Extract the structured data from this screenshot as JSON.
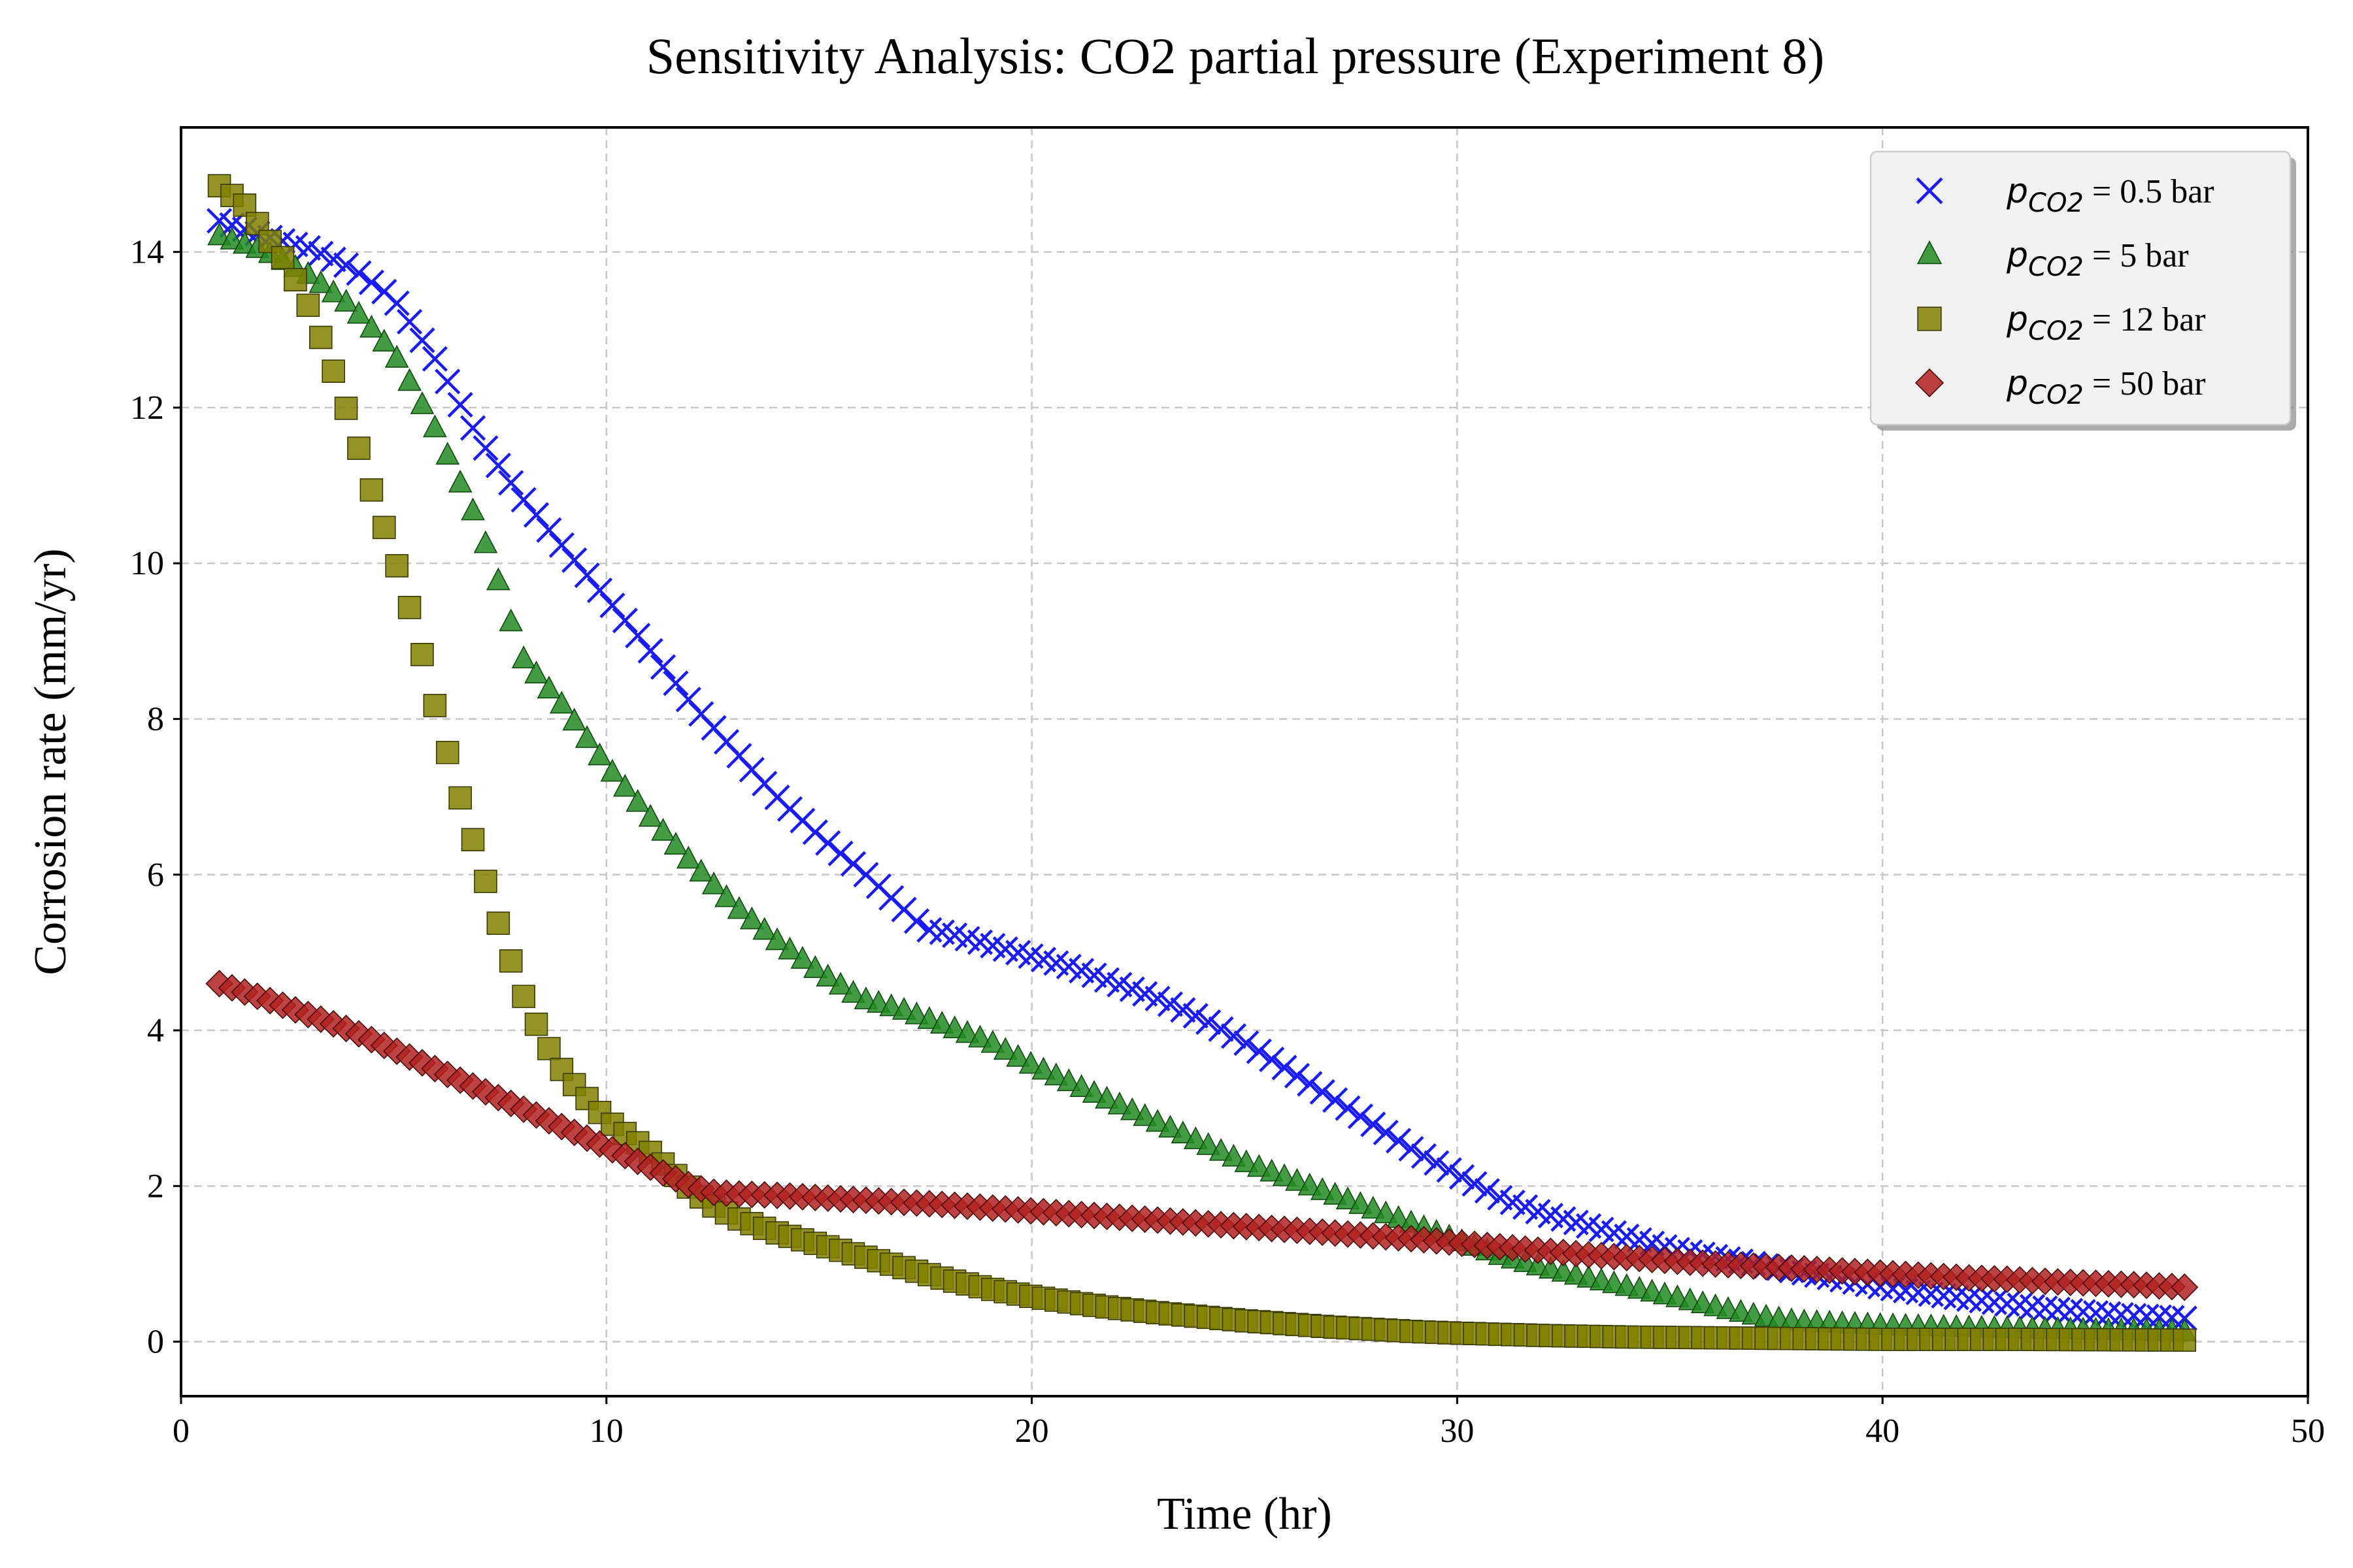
{
  "chart_data": {
    "type": "scatter",
    "title": "Sensitivity Analysis: CO2 partial pressure (Experiment 8)",
    "xlabel": "Time (hr)",
    "ylabel": "Corrosion rate (mm/yr)",
    "xlim": [
      0,
      50
    ],
    "ylim": [
      -0.7,
      15.6
    ],
    "xticks": [
      0,
      10,
      20,
      30,
      40,
      50
    ],
    "yticks": [
      0,
      2,
      4,
      6,
      8,
      10,
      12,
      14
    ],
    "grid": true,
    "legend_position": "top-right",
    "legend": [
      {
        "symbol": "p",
        "subscript": "CO2",
        "text": " = 0.5 bar",
        "series_index": 0
      },
      {
        "symbol": "p",
        "subscript": "CO2",
        "text": " = 5 bar",
        "series_index": 1
      },
      {
        "symbol": "p",
        "subscript": "CO2",
        "text": " = 12 bar",
        "series_index": 2
      },
      {
        "symbol": "p",
        "subscript": "CO2",
        "text": " = 50 bar",
        "series_index": 3
      }
    ],
    "x_sampling": {
      "start": 0.9,
      "end": 47.1,
      "count": 156
    },
    "series": [
      {
        "name": "pCO2 = 0.5 bar",
        "marker": "x",
        "color": "#1a1aff",
        "edge_color": "#1a1aff",
        "points": [
          [
            0.9,
            14.4
          ],
          [
            2,
            14.2
          ],
          [
            3,
            14.05
          ],
          [
            4,
            13.8
          ],
          [
            5,
            13.4
          ],
          [
            6,
            12.6
          ],
          [
            7,
            11.6
          ],
          [
            8,
            10.85
          ],
          [
            9,
            10.2
          ],
          [
            10,
            9.55
          ],
          [
            11,
            8.9
          ],
          [
            12,
            8.2
          ],
          [
            13,
            7.6
          ],
          [
            14,
            7.0
          ],
          [
            15,
            6.5
          ],
          [
            16,
            6.05
          ],
          [
            17,
            5.55
          ],
          [
            17.5,
            5.3
          ],
          [
            18,
            5.25
          ],
          [
            19,
            5.1
          ],
          [
            20,
            4.95
          ],
          [
            21,
            4.8
          ],
          [
            22,
            4.6
          ],
          [
            23,
            4.4
          ],
          [
            24,
            4.15
          ],
          [
            25,
            3.85
          ],
          [
            26,
            3.5
          ],
          [
            27,
            3.15
          ],
          [
            28,
            2.8
          ],
          [
            29,
            2.45
          ],
          [
            30,
            2.15
          ],
          [
            31,
            1.85
          ],
          [
            32,
            1.65
          ],
          [
            33,
            1.5
          ],
          [
            34,
            1.35
          ],
          [
            35,
            1.2
          ],
          [
            36,
            1.1
          ],
          [
            37,
            1.0
          ],
          [
            38,
            0.9
          ],
          [
            39,
            0.8
          ],
          [
            40,
            0.7
          ],
          [
            41,
            0.62
          ],
          [
            42,
            0.55
          ],
          [
            43,
            0.48
          ],
          [
            44,
            0.42
          ],
          [
            45,
            0.37
          ],
          [
            46,
            0.33
          ],
          [
            47.1,
            0.3
          ]
        ]
      },
      {
        "name": "pCO2 = 5 bar",
        "marker": "triangle",
        "color": "#228b22",
        "edge_color": "#0f4a0f",
        "points": [
          [
            0.9,
            14.2
          ],
          [
            2,
            14.0
          ],
          [
            3,
            13.7
          ],
          [
            4,
            13.3
          ],
          [
            5,
            12.7
          ],
          [
            6,
            11.7
          ],
          [
            7,
            10.5
          ],
          [
            7.5,
            9.7
          ],
          [
            8,
            8.8
          ],
          [
            9,
            8.15
          ],
          [
            10,
            7.4
          ],
          [
            11,
            6.75
          ],
          [
            12,
            6.15
          ],
          [
            13,
            5.6
          ],
          [
            14,
            5.15
          ],
          [
            15,
            4.75
          ],
          [
            16,
            4.4
          ],
          [
            17,
            4.25
          ],
          [
            18,
            4.05
          ],
          [
            19,
            3.85
          ],
          [
            20,
            3.55
          ],
          [
            21,
            3.3
          ],
          [
            22,
            3.05
          ],
          [
            23,
            2.8
          ],
          [
            24,
            2.55
          ],
          [
            25,
            2.3
          ],
          [
            26,
            2.1
          ],
          [
            27,
            1.9
          ],
          [
            28,
            1.7
          ],
          [
            29,
            1.5
          ],
          [
            30,
            1.3
          ],
          [
            31,
            1.1
          ],
          [
            32,
            0.95
          ],
          [
            33,
            0.82
          ],
          [
            34,
            0.7
          ],
          [
            35,
            0.58
          ],
          [
            36,
            0.45
          ],
          [
            37,
            0.33
          ],
          [
            38,
            0.25
          ],
          [
            40,
            0.2
          ],
          [
            42,
            0.17
          ],
          [
            44,
            0.15
          ],
          [
            47.1,
            0.12
          ]
        ]
      },
      {
        "name": "pCO2 = 12 bar",
        "marker": "square",
        "color": "#808000",
        "edge_color": "#3a3a00",
        "points": [
          [
            0.9,
            14.85
          ],
          [
            1.5,
            14.6
          ],
          [
            2,
            14.2
          ],
          [
            2.5,
            13.85
          ],
          [
            3,
            13.3
          ],
          [
            3.5,
            12.6
          ],
          [
            4,
            11.8
          ],
          [
            4.5,
            10.9
          ],
          [
            5,
            10.1
          ],
          [
            5.5,
            9.2
          ],
          [
            6,
            8.1
          ],
          [
            6.5,
            7.1
          ],
          [
            7,
            6.2
          ],
          [
            7.5,
            5.3
          ],
          [
            8,
            4.5
          ],
          [
            8.5,
            3.9
          ],
          [
            9,
            3.45
          ],
          [
            9.5,
            3.15
          ],
          [
            10,
            2.85
          ],
          [
            10.5,
            2.65
          ],
          [
            11,
            2.45
          ],
          [
            11.5,
            2.2
          ],
          [
            12,
            1.95
          ],
          [
            12.5,
            1.75
          ],
          [
            13,
            1.6
          ],
          [
            14,
            1.4
          ],
          [
            15,
            1.25
          ],
          [
            16,
            1.1
          ],
          [
            17,
            0.95
          ],
          [
            18,
            0.8
          ],
          [
            19,
            0.68
          ],
          [
            20,
            0.58
          ],
          [
            21,
            0.5
          ],
          [
            22,
            0.43
          ],
          [
            23,
            0.37
          ],
          [
            24,
            0.32
          ],
          [
            25,
            0.27
          ],
          [
            26,
            0.23
          ],
          [
            27,
            0.19
          ],
          [
            28,
            0.16
          ],
          [
            29,
            0.13
          ],
          [
            30,
            0.11
          ],
          [
            32,
            0.08
          ],
          [
            34,
            0.06
          ],
          [
            36,
            0.05
          ],
          [
            38,
            0.04
          ],
          [
            40,
            0.03
          ],
          [
            43,
            0.03
          ],
          [
            47.1,
            0.02
          ]
        ]
      },
      {
        "name": "pCO2 = 50 bar",
        "marker": "diamond",
        "color": "#b22222",
        "edge_color": "#4a0a0a",
        "points": [
          [
            0.9,
            4.6
          ],
          [
            2,
            4.4
          ],
          [
            3,
            4.2
          ],
          [
            4,
            4.0
          ],
          [
            5,
            3.75
          ],
          [
            6,
            3.5
          ],
          [
            7,
            3.25
          ],
          [
            8,
            3.0
          ],
          [
            9,
            2.75
          ],
          [
            10,
            2.5
          ],
          [
            11,
            2.25
          ],
          [
            12,
            2.0
          ],
          [
            12.5,
            1.92
          ],
          [
            13,
            1.9
          ],
          [
            14,
            1.88
          ],
          [
            15,
            1.85
          ],
          [
            16,
            1.82
          ],
          [
            17,
            1.79
          ],
          [
            18,
            1.76
          ],
          [
            19,
            1.72
          ],
          [
            20,
            1.68
          ],
          [
            21,
            1.64
          ],
          [
            22,
            1.6
          ],
          [
            23,
            1.56
          ],
          [
            24,
            1.52
          ],
          [
            25,
            1.48
          ],
          [
            26,
            1.44
          ],
          [
            27,
            1.4
          ],
          [
            28,
            1.36
          ],
          [
            29,
            1.32
          ],
          [
            30,
            1.27
          ],
          [
            31,
            1.22
          ],
          [
            32,
            1.17
          ],
          [
            33,
            1.12
          ],
          [
            34,
            1.08
          ],
          [
            35,
            1.04
          ],
          [
            36,
            1.0
          ],
          [
            37,
            0.97
          ],
          [
            38,
            0.94
          ],
          [
            39,
            0.91
          ],
          [
            40,
            0.88
          ],
          [
            41,
            0.85
          ],
          [
            42,
            0.82
          ],
          [
            43,
            0.8
          ],
          [
            44,
            0.77
          ],
          [
            45,
            0.75
          ],
          [
            46,
            0.73
          ],
          [
            47.1,
            0.7
          ]
        ]
      }
    ]
  }
}
